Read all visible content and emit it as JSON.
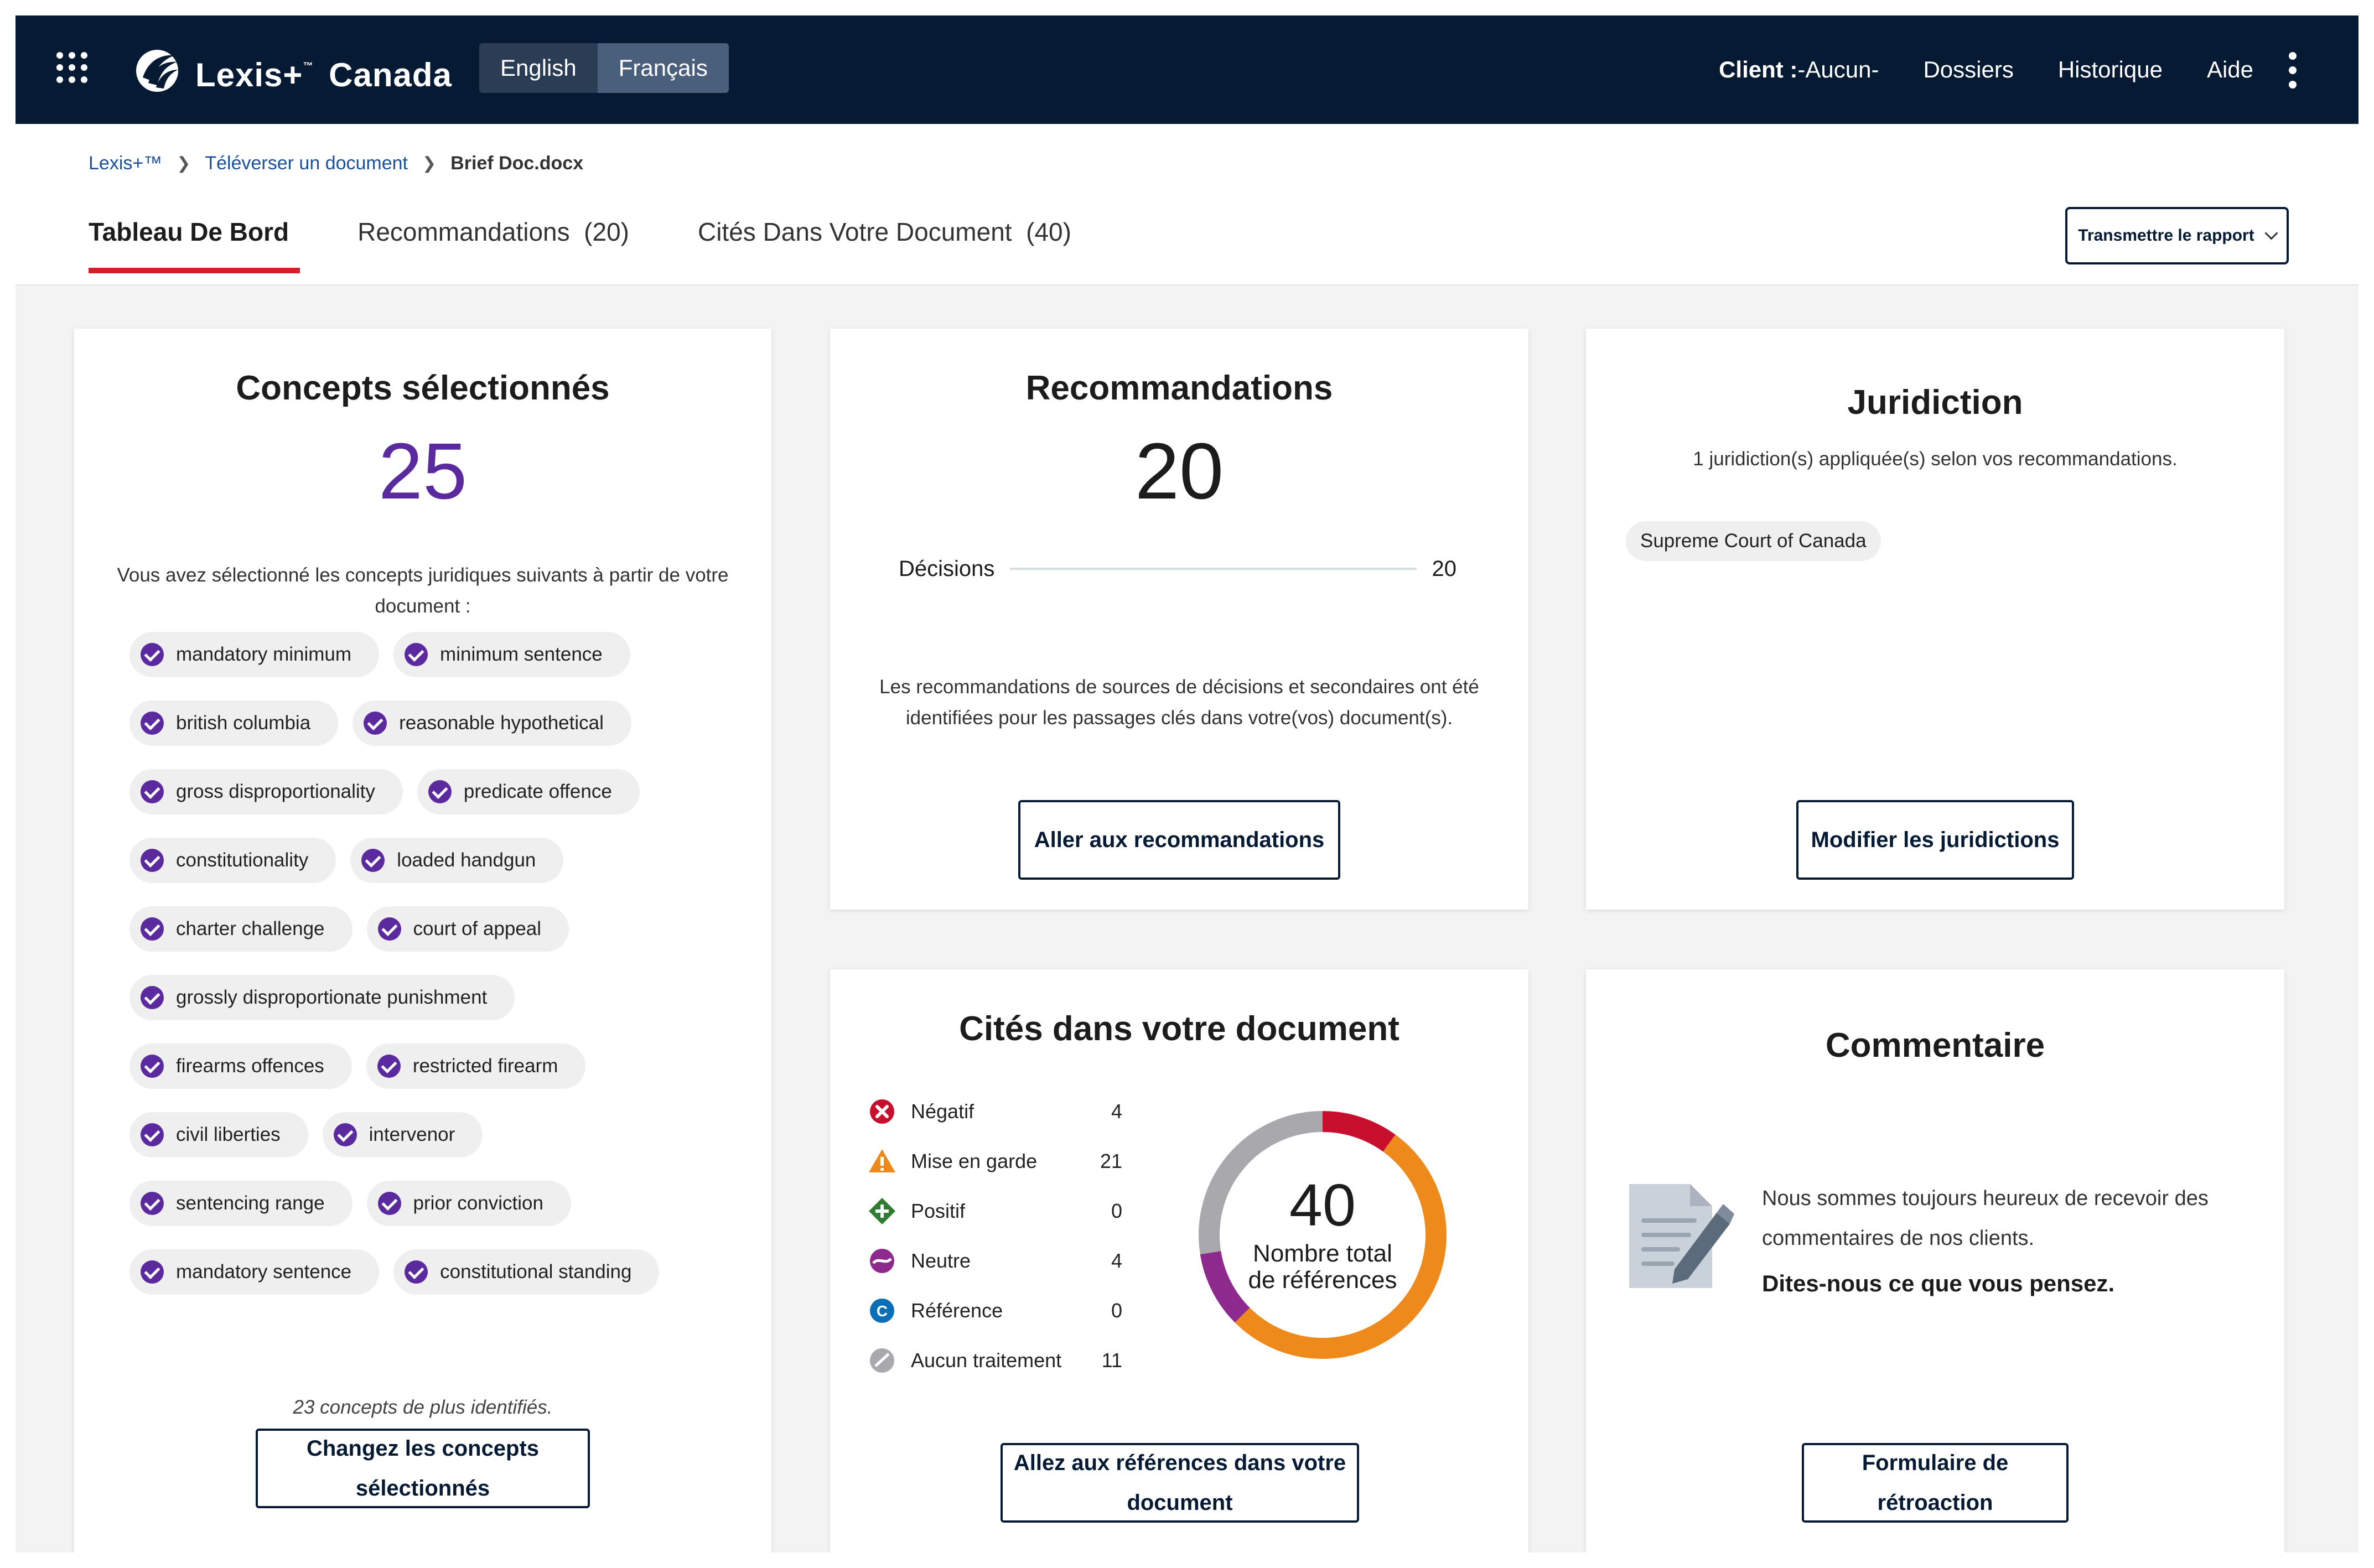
{
  "header": {
    "brand": "Lexis+",
    "brand_tm": "™",
    "brand_suffix": "Canada",
    "lang_en": "English",
    "lang_fr": "Français",
    "client_label": "Client :",
    "client_value": "-Aucun-",
    "nav": [
      "Dossiers",
      "Historique",
      "Aide"
    ],
    "icons": {
      "apps": "grid-icon",
      "more": "kebab-icon"
    }
  },
  "breadcrumb": [
    "Lexis+™",
    "Téléverser un document",
    "Brief Doc.docx"
  ],
  "tabs": [
    "Tableau De Bord",
    "Recommandations  (20)",
    "Cités Dans Votre Document  (40)"
  ],
  "report_button": "Transmettre le rapport",
  "concepts": {
    "title": "Concepts sélectionnés",
    "count": "25",
    "desc_line1": "Vous avez sélectionné les concepts juridiques suivants à partir de votre",
    "desc_line2": "document :",
    "rows": [
      [
        "mandatory minimum",
        "minimum sentence"
      ],
      [
        "british columbia",
        "reasonable hypothetical"
      ],
      [
        "gross disproportionality",
        "predicate offence"
      ],
      [
        "constitutionality",
        "loaded handgun"
      ],
      [
        "charter challenge",
        "court of appeal"
      ],
      [
        "grossly disproportionate punishment"
      ],
      [
        "firearms offences",
        "restricted firearm"
      ],
      [
        "civil liberties",
        "intervenor"
      ],
      [
        "sentencing range",
        "prior conviction"
      ],
      [
        "mandatory sentence",
        "constitutional standing"
      ]
    ],
    "more": "23 concepts de plus identifiés.",
    "button_line1": "Changez les concepts",
    "button_line2": "sélectionnés"
  },
  "recommandations": {
    "title": "Recommandations",
    "count": "20",
    "bar_label": "Décisions",
    "bar_value": "20",
    "desc_line1": "Les recommandations de sources de décisions et secondaires ont été",
    "desc_line2": "identifiées pour les passages clés dans votre(vos) document(s).",
    "button": "Aller aux recommandations"
  },
  "juridiction": {
    "title": "Juridiction",
    "desc": "1 juridiction(s) appliquée(s) selon vos recommandations.",
    "tag": "Supreme Court of Canada",
    "button": "Modifier les juridictions"
  },
  "cites": {
    "title": "Cités dans votre document",
    "legend": [
      {
        "label": "Négatif",
        "value": "4",
        "color": "#c8102e",
        "icon": "negative-icon"
      },
      {
        "label": "Mise en garde",
        "value": "21",
        "color": "#ee8a1c",
        "icon": "caution-icon"
      },
      {
        "label": "Positif",
        "value": "0",
        "color": "#2e7d32",
        "icon": "positive-icon"
      },
      {
        "label": "Neutre",
        "value": "4",
        "color": "#8e2a8e",
        "icon": "neutral-icon"
      },
      {
        "label": "Référence",
        "value": "0",
        "color": "#0a6fb5",
        "icon": "reference-icon"
      },
      {
        "label": "Aucun traitement",
        "value": "11",
        "color": "#a8a8ad",
        "icon": "no-treatment-icon"
      }
    ],
    "total": "40",
    "total_label_line1": "Nombre total",
    "total_label_line2": "de références",
    "button_line1": "Allez aux références dans votre",
    "button_line2": "document"
  },
  "commentaire": {
    "title": "Commentaire",
    "text_line1": "Nous sommes toujours heureux de recevoir des",
    "text_line2": "commentaires de nos clients.",
    "emphasis": "Dites-nous ce que vous pensez.",
    "button_line1": "Formulaire de",
    "button_line2": "rétroaction",
    "icon": "feedback-document-icon"
  }
}
